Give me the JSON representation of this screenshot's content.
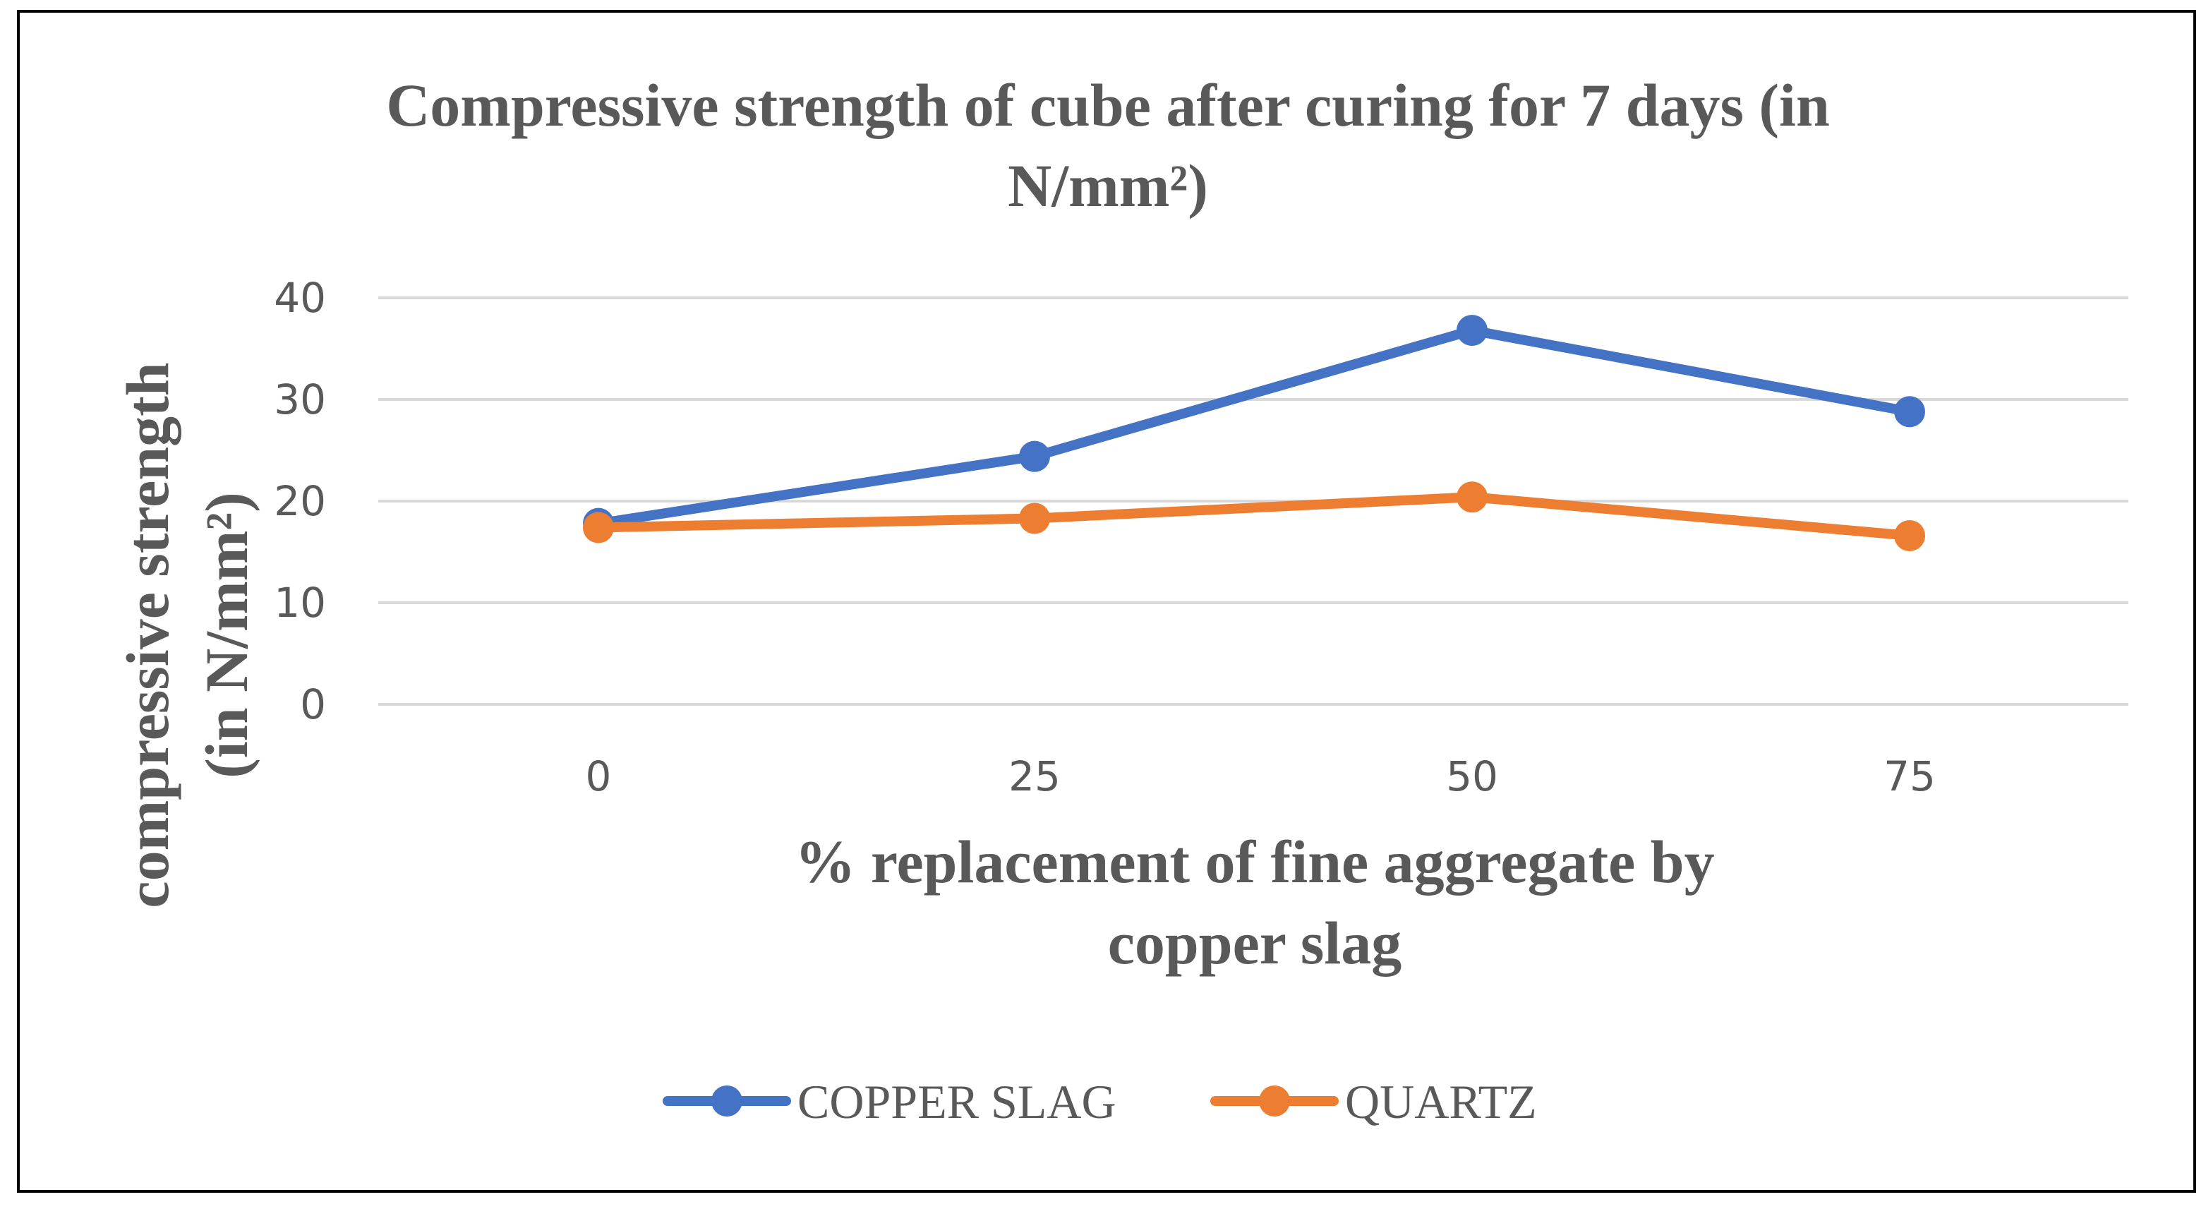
{
  "chart_data": {
    "type": "line",
    "title": "Compressive strength of cube after curing for 7 days (in N/mm²)",
    "title_lines": [
      "Compressive strength of cube after curing for 7 days (in",
      "N/mm²)"
    ],
    "xlabel": "% replacement of fine aggregate by copper slag",
    "xlabel_lines": [
      "% replacement of fine aggregate by",
      "copper slag"
    ],
    "ylabel": "compressive strength (in N/mm²)",
    "ylabel_lines": [
      "compressive strength",
      "(in N/mm²)"
    ],
    "categories": [
      "0",
      "25",
      "50",
      "75"
    ],
    "ylim": [
      0,
      40
    ],
    "yticks": [
      "0",
      "10",
      "20",
      "30",
      "40"
    ],
    "grid": true,
    "legend_position": "bottom",
    "series": [
      {
        "name": "COPPER SLAG",
        "color": "#4472c4",
        "values": [
          17.8,
          24.4,
          36.8,
          28.8
        ]
      },
      {
        "name": "QUARTZ",
        "color": "#ed7d31",
        "values": [
          17.4,
          18.3,
          20.4,
          16.6
        ]
      }
    ]
  }
}
